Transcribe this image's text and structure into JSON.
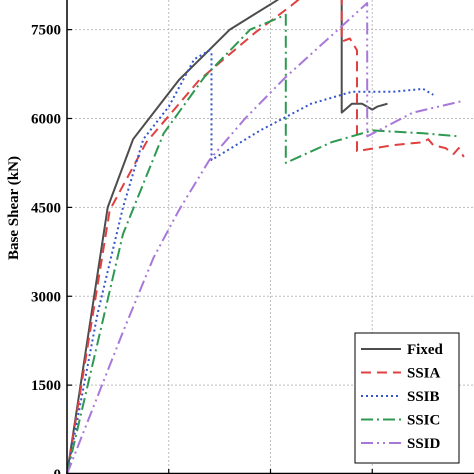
{
  "chart_data": {
    "type": "line",
    "title": "",
    "ylabel": "Base Shear (kN)",
    "xlabel": "",
    "xlim": [
      0,
      4
    ],
    "ylim": [
      0,
      8000
    ],
    "yticks": [
      0,
      1500,
      3000,
      4500,
      6000,
      7500
    ],
    "ytick_labels": [
      "0",
      "1500",
      "3000",
      "4500",
      "6000",
      "7500"
    ],
    "xgrid": [
      1,
      2,
      3
    ],
    "grid": true,
    "legend_position": "bottom-right",
    "series": [
      {
        "name": "Fixed",
        "color": "#4d4d4d",
        "dash": "solid",
        "x": [
          0,
          0.4,
          0.65,
          1.1,
          1.6,
          2.05,
          2.7,
          2.7,
          2.8,
          2.9,
          3.0,
          3.05,
          3.15
        ],
        "y": [
          0,
          4500,
          5650,
          6650,
          7500,
          7980,
          8750,
          6100,
          6250,
          6250,
          6150,
          6200,
          6250
        ]
      },
      {
        "name": "SSIA",
        "color": "#e04040",
        "dash": "10,6",
        "x": [
          0,
          0.42,
          0.78,
          1.3,
          1.85,
          2.2,
          2.7,
          2.7,
          2.78,
          2.85,
          2.85,
          3.2,
          3.5,
          3.55,
          3.6,
          3.72,
          3.8,
          3.85,
          3.9
        ],
        "y": [
          0,
          4450,
          5600,
          6650,
          7450,
          7900,
          8600,
          7300,
          7350,
          7150,
          5450,
          5550,
          5600,
          5650,
          5550,
          5500,
          5400,
          5500,
          5350
        ]
      },
      {
        "name": "SSIB",
        "color": "#3355cc",
        "dash": "2,3",
        "x": [
          0,
          0.3,
          0.55,
          0.75,
          1.0,
          1.25,
          1.4,
          1.42,
          1.42,
          1.9,
          2.4,
          2.8,
          3.2,
          3.5,
          3.6
        ],
        "y": [
          0,
          2700,
          4500,
          5650,
          6200,
          7000,
          7150,
          7100,
          5300,
          5800,
          6250,
          6450,
          6450,
          6500,
          6400
        ]
      },
      {
        "name": "SSIC",
        "color": "#2e9950",
        "dash": "12,4,2,4",
        "x": [
          0,
          0.55,
          0.95,
          1.35,
          1.8,
          2.15,
          2.15,
          2.6,
          3.0,
          3.5,
          3.85
        ],
        "y": [
          0,
          4050,
          5750,
          6700,
          7500,
          7750,
          5250,
          5600,
          5800,
          5750,
          5700
        ]
      },
      {
        "name": "SSID",
        "color": "#a878d8",
        "dash": "12,4,2,4,2,4",
        "x": [
          0,
          0.55,
          0.85,
          1.1,
          1.4,
          1.75,
          2.15,
          2.6,
          2.95,
          2.95,
          3.4,
          3.9
        ],
        "y": [
          0,
          2400,
          3650,
          4450,
          5300,
          6000,
          6700,
          7400,
          7950,
          5700,
          6100,
          6300
        ]
      }
    ]
  }
}
